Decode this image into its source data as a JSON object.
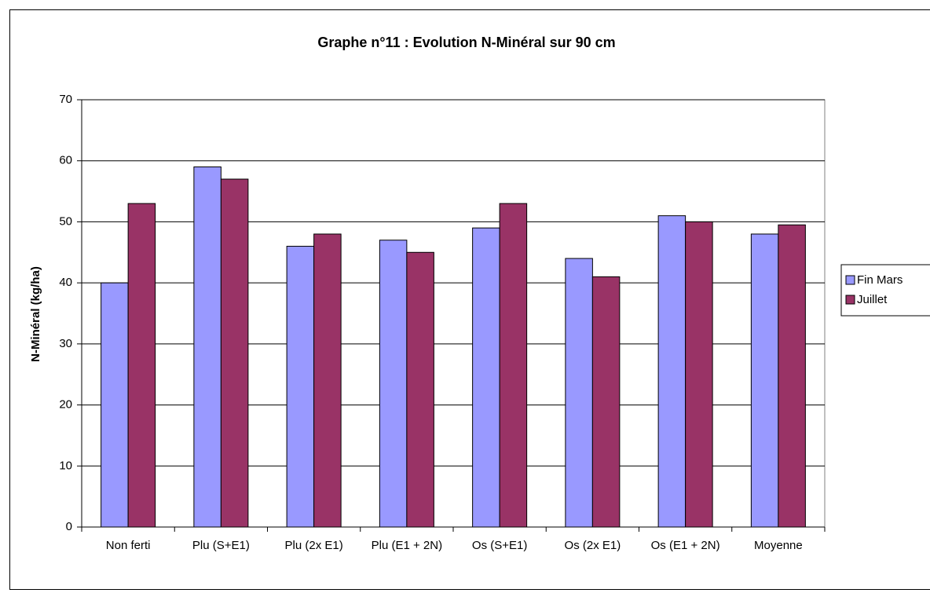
{
  "chart_data": {
    "type": "bar",
    "title": "Graphe n°11 : Evolution N-Minéral sur 90 cm",
    "ylabel": "N-Minéral (kg/ha)",
    "categories": [
      "Non ferti",
      "Plu (S+E1)",
      "Plu (2x E1)",
      "Plu (E1 + 2N)",
      "Os (S+E1)",
      "Os (2x E1)",
      "Os (E1 + 2N)",
      "Moyenne"
    ],
    "series": [
      {
        "name": "Fin Mars",
        "color": "#9999ff",
        "values": [
          40,
          59,
          46,
          47,
          49,
          44,
          51,
          48
        ]
      },
      {
        "name": "Juillet",
        "color": "#993366",
        "values": [
          53,
          57,
          48,
          45,
          53,
          41,
          50,
          49.5
        ]
      }
    ],
    "ylim": [
      0,
      70
    ],
    "yticks": [
      0,
      10,
      20,
      30,
      40,
      50,
      60,
      70
    ],
    "grid": true,
    "legend": "right"
  }
}
